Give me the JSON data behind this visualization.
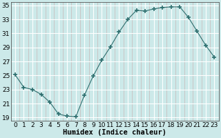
{
  "x": [
    0,
    1,
    2,
    3,
    4,
    5,
    6,
    7,
    8,
    9,
    10,
    11,
    12,
    13,
    14,
    15,
    16,
    17,
    18,
    19,
    20,
    21,
    22,
    23
  ],
  "y": [
    25.1,
    23.3,
    23.0,
    22.3,
    21.2,
    19.5,
    19.2,
    19.1,
    22.2,
    24.9,
    27.2,
    29.1,
    31.2,
    33.0,
    34.3,
    34.2,
    34.5,
    34.7,
    34.8,
    34.8,
    33.3,
    31.3,
    29.3,
    27.6
  ],
  "xlabel": "Humidex (Indice chaleur)",
  "ylabel": "",
  "title": "",
  "line_color": "#2d6e6e",
  "marker": "+",
  "marker_size": 4,
  "bg_color": "#cce9e9",
  "grid_major_color": "#ffffff",
  "grid_minor_color": "#c9b8b8",
  "ylim_min": 18.5,
  "ylim_max": 35.5,
  "xlim_min": -0.5,
  "xlim_max": 23.5,
  "yticks": [
    19,
    21,
    23,
    25,
    27,
    29,
    31,
    33,
    35
  ],
  "xticks": [
    0,
    1,
    2,
    3,
    4,
    5,
    6,
    7,
    8,
    9,
    10,
    11,
    12,
    13,
    14,
    15,
    16,
    17,
    18,
    19,
    20,
    21,
    22,
    23
  ],
  "tick_fontsize": 6.5,
  "label_fontsize": 7.5
}
